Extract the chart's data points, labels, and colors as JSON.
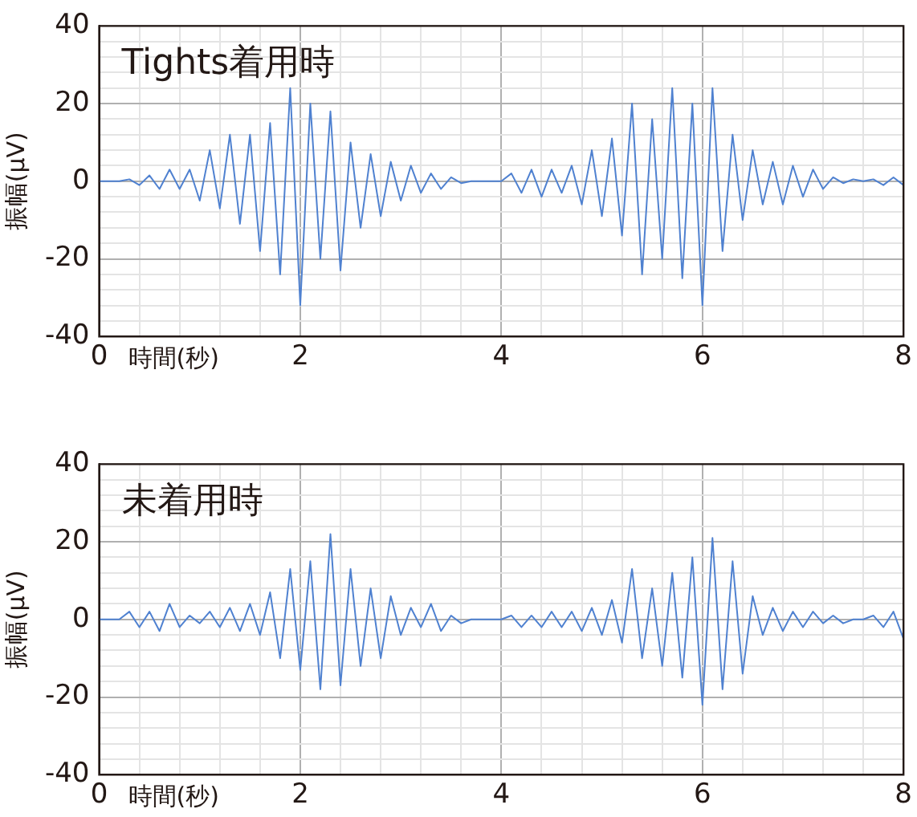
{
  "chart_data": [
    {
      "type": "line",
      "title": "Tights着用時",
      "xlabel": "時間(秒)",
      "ylabel": "振幅(μV)",
      "x": [
        0,
        0.1,
        0.2,
        0.3,
        0.4,
        0.5,
        0.6,
        0.7,
        0.8,
        0.9,
        1,
        1.1,
        1.2,
        1.3,
        1.4,
        1.5,
        1.6,
        1.7,
        1.8,
        1.9,
        2,
        2.1,
        2.2,
        2.3,
        2.4,
        2.5,
        2.6,
        2.7,
        2.8,
        2.9,
        3,
        3.1,
        3.2,
        3.3,
        3.4,
        3.5,
        3.6,
        3.7,
        3.8,
        3.9,
        4,
        4.1,
        4.2,
        4.3,
        4.4,
        4.5,
        4.6,
        4.7,
        4.8,
        4.9,
        5,
        5.1,
        5.2,
        5.3,
        5.4,
        5.5,
        5.6,
        5.7,
        5.8,
        5.9,
        6,
        6.1,
        6.2,
        6.3,
        6.4,
        6.5,
        6.6,
        6.7,
        6.8,
        6.9,
        7,
        7.1,
        7.2,
        7.3,
        7.4,
        7.5,
        7.6,
        7.7,
        7.8,
        7.9,
        8
      ],
      "series": [
        {
          "color": "#4f81d0",
          "values": [
            0,
            0,
            0,
            0.5,
            -1,
            1.5,
            -2,
            3,
            -2,
            3,
            -5,
            8,
            -7,
            12,
            -11,
            12,
            -18,
            15,
            -24,
            24,
            -32,
            20,
            -20,
            18,
            -23,
            10,
            -12,
            7,
            -9,
            5,
            -5,
            4,
            -3,
            2,
            -2,
            1,
            -0.5,
            0,
            0,
            0,
            0,
            2,
            -3,
            3,
            -4,
            3,
            -3,
            4,
            -6,
            8,
            -9,
            11,
            -14,
            20,
            -24,
            16,
            -20,
            24,
            -25,
            20,
            -32,
            24,
            -18,
            12,
            -10,
            8,
            -6,
            5,
            -6,
            4,
            -4,
            3,
            -2,
            1,
            -0.5,
            0.5,
            0,
            0.5,
            -1,
            1,
            -1
          ]
        }
      ],
      "xlim": [
        0,
        8
      ],
      "ylim": [
        -40,
        40
      ],
      "xticks": [
        0,
        {
          "value": 0.4,
          "label": null
        },
        {
          "value": 0.8,
          "label": null
        },
        {
          "value": 1.2,
          "label": null
        },
        {
          "value": 1.6,
          "label": null
        },
        2,
        {
          "value": 2.4,
          "label": null
        },
        {
          "value": 2.8,
          "label": null
        },
        {
          "value": 3.2,
          "label": null
        },
        {
          "value": 3.6,
          "label": null
        },
        4,
        {
          "value": 4.4,
          "label": null
        },
        {
          "value": 4.8,
          "label": null
        },
        {
          "value": 5.2,
          "label": null
        },
        {
          "value": 5.6,
          "label": null
        },
        6,
        {
          "value": 6.4,
          "label": null
        },
        {
          "value": 6.8,
          "label": null
        },
        {
          "value": 7.2,
          "label": null
        },
        {
          "value": 7.6,
          "label": null
        },
        8
      ],
      "yticks": [
        -40,
        {
          "value": -36,
          "label": null
        },
        {
          "value": -32,
          "label": null
        },
        {
          "value": -28,
          "label": null
        },
        {
          "value": -24,
          "label": null
        },
        -20,
        {
          "value": -16,
          "label": null
        },
        {
          "value": -12,
          "label": null
        },
        {
          "value": -8,
          "label": null
        },
        {
          "value": -4,
          "label": null
        },
        0,
        {
          "value": 4,
          "label": null
        },
        {
          "value": 8,
          "label": null
        },
        {
          "value": 12,
          "label": null
        },
        {
          "value": 16,
          "label": null
        },
        20,
        {
          "value": 24,
          "label": null
        },
        {
          "value": 28,
          "label": null
        },
        {
          "value": 32,
          "label": null
        },
        {
          "value": 36,
          "label": null
        },
        40
      ],
      "grid": true
    },
    {
      "type": "line",
      "title": "未着用時",
      "xlabel": "時間(秒)",
      "ylabel": "振幅(μV)",
      "x": [
        0,
        0.1,
        0.2,
        0.3,
        0.4,
        0.5,
        0.6,
        0.7,
        0.8,
        0.9,
        1,
        1.1,
        1.2,
        1.3,
        1.4,
        1.5,
        1.6,
        1.7,
        1.8,
        1.9,
        2,
        2.1,
        2.2,
        2.3,
        2.4,
        2.5,
        2.6,
        2.7,
        2.8,
        2.9,
        3,
        3.1,
        3.2,
        3.3,
        3.4,
        3.5,
        3.6,
        3.7,
        3.8,
        3.9,
        4,
        4.1,
        4.2,
        4.3,
        4.4,
        4.5,
        4.6,
        4.7,
        4.8,
        4.9,
        5,
        5.1,
        5.2,
        5.3,
        5.4,
        5.5,
        5.6,
        5.7,
        5.8,
        5.9,
        6,
        6.1,
        6.2,
        6.3,
        6.4,
        6.5,
        6.6,
        6.7,
        6.8,
        6.9,
        7,
        7.1,
        7.2,
        7.3,
        7.4,
        7.5,
        7.6,
        7.7,
        7.8,
        7.9,
        8
      ],
      "series": [
        {
          "color": "#4f81d0",
          "values": [
            0,
            0,
            0,
            2,
            -2,
            2,
            -3,
            4,
            -2,
            1,
            -1,
            2,
            -2,
            3,
            -3,
            4,
            -4,
            7,
            -10,
            13,
            -13,
            15,
            -18,
            22,
            -17,
            13,
            -12,
            8,
            -10,
            6,
            -4,
            3,
            -2,
            4,
            -3,
            1,
            -1,
            0,
            0,
            0,
            0,
            1,
            -2,
            1,
            -2,
            2,
            -2,
            2,
            -3,
            3,
            -4,
            5,
            -6,
            13,
            -10,
            8,
            -12,
            12,
            -15,
            16,
            -22,
            21,
            -18,
            15,
            -14,
            6,
            -4,
            3,
            -3,
            2,
            -2,
            2,
            -1,
            1,
            -1,
            0,
            0,
            1,
            -2,
            2,
            -5
          ]
        }
      ],
      "xlim": [
        0,
        8
      ],
      "ylim": [
        -40,
        40
      ],
      "xticks": [
        0,
        {
          "value": 0.4,
          "label": null
        },
        {
          "value": 0.8,
          "label": null
        },
        {
          "value": 1.2,
          "label": null
        },
        {
          "value": 1.6,
          "label": null
        },
        2,
        {
          "value": 2.4,
          "label": null
        },
        {
          "value": 2.8,
          "label": null
        },
        {
          "value": 3.2,
          "label": null
        },
        {
          "value": 3.6,
          "label": null
        },
        4,
        {
          "value": 4.4,
          "label": null
        },
        {
          "value": 4.8,
          "label": null
        },
        {
          "value": 5.2,
          "label": null
        },
        {
          "value": 5.6,
          "label": null
        },
        6,
        {
          "value": 6.4,
          "label": null
        },
        {
          "value": 6.8,
          "label": null
        },
        {
          "value": 7.2,
          "label": null
        },
        {
          "value": 7.6,
          "label": null
        },
        8
      ],
      "yticks": [
        -40,
        {
          "value": -36,
          "label": null
        },
        {
          "value": -32,
          "label": null
        },
        {
          "value": -28,
          "label": null
        },
        {
          "value": -24,
          "label": null
        },
        -20,
        {
          "value": -16,
          "label": null
        },
        {
          "value": -12,
          "label": null
        },
        {
          "value": -8,
          "label": null
        },
        {
          "value": -4,
          "label": null
        },
        0,
        {
          "value": 4,
          "label": null
        },
        {
          "value": 8,
          "label": null
        },
        {
          "value": 12,
          "label": null
        },
        {
          "value": 16,
          "label": null
        },
        20,
        {
          "value": 24,
          "label": null
        },
        {
          "value": 28,
          "label": null
        },
        {
          "value": 32,
          "label": null
        },
        {
          "value": 36,
          "label": null
        },
        40
      ],
      "grid": true
    }
  ]
}
